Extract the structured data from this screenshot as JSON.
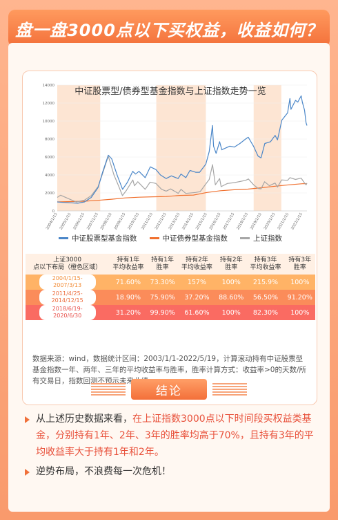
{
  "page": {
    "title": "盘一盘3000点以下买权益，收益如何？",
    "conclusion_label": "结论",
    "source_note": "数据来源：wind，数据统计区间：2003/1/1-2022/5/19，计算滚动持有中证股票型基金指数一年、两年、三年的平均收益率与胜率，胜率计算方式：收益率>0的天数/所有交易日，指数回测不预示未来业绩。",
    "points": [
      {
        "pre": "从上述历史数据来看，",
        "highlight": "在上证指数3000点以下时间段买权益类基金，分别持有1年、2年、3年的胜率均高于70%，且持有3年的平均收益率大于持有1年和2年。",
        "post": ""
      },
      {
        "pre": "逆势布局，不浪费每一次危机！",
        "highlight": "",
        "post": ""
      }
    ]
  },
  "chart_data": {
    "type": "line",
    "title": "中证股票型/债券型基金指数与上证指数走势一览",
    "ylim": [
      0,
      14000
    ],
    "yticks": [
      0,
      2000,
      4000,
      6000,
      8000,
      10000,
      12000,
      14000
    ],
    "xlim": [
      "2004-01-15",
      "2022-05-19"
    ],
    "xticks": [
      "2004/1/15",
      "2005/1/15",
      "2006/1/15",
      "2007/1/15",
      "2008/1/15",
      "2009/1/15",
      "2010/1/15",
      "2011/1/15",
      "2012/1/15",
      "2013/1/15",
      "2014/1/15",
      "2015/1/15",
      "2016/1/15",
      "2017/1/15",
      "2018/1/15",
      "2019/1/15",
      "2020/1/15",
      "2021/1/15",
      "2022/1/15"
    ],
    "shaded_periods": [
      [
        "2004-01-15",
        "2007-03-13"
      ],
      [
        "2011-04-25",
        "2014-12-15"
      ],
      [
        "2018-06-19",
        "2020-06-30"
      ]
    ],
    "shade_color": "#fde5d3",
    "series": [
      {
        "name": "中证股票型基金指数",
        "color": "#4a86c8",
        "points": [
          [
            "2004-01-15",
            1000
          ],
          [
            "2004-06-15",
            950
          ],
          [
            "2005-01-15",
            900
          ],
          [
            "2005-07-15",
            850
          ],
          [
            "2006-01-15",
            1000
          ],
          [
            "2006-07-15",
            1500
          ],
          [
            "2007-01-15",
            2600
          ],
          [
            "2007-05-15",
            4300
          ],
          [
            "2007-10-15",
            6200
          ],
          [
            "2008-01-15",
            5800
          ],
          [
            "2008-06-15",
            3900
          ],
          [
            "2008-11-01",
            2400
          ],
          [
            "2009-03-15",
            3200
          ],
          [
            "2009-08-01",
            4400
          ],
          [
            "2009-10-15",
            4100
          ],
          [
            "2010-01-15",
            4400
          ],
          [
            "2010-07-01",
            3700
          ],
          [
            "2010-11-15",
            4900
          ],
          [
            "2011-04-15",
            4600
          ],
          [
            "2011-08-15",
            4000
          ],
          [
            "2012-01-15",
            3600
          ],
          [
            "2012-06-01",
            3900
          ],
          [
            "2012-12-01",
            3600
          ],
          [
            "2013-02-15",
            4100
          ],
          [
            "2013-06-25",
            3700
          ],
          [
            "2013-10-15",
            4500
          ],
          [
            "2014-03-15",
            4300
          ],
          [
            "2014-07-01",
            4300
          ],
          [
            "2014-12-15",
            5200
          ],
          [
            "2015-03-15",
            6600
          ],
          [
            "2015-06-10",
            9500
          ],
          [
            "2015-07-10",
            7200
          ],
          [
            "2015-09-15",
            6400
          ],
          [
            "2015-12-20",
            7700
          ],
          [
            "2016-02-15",
            6800
          ],
          [
            "2016-09-15",
            7200
          ],
          [
            "2017-01-15",
            7100
          ],
          [
            "2017-06-15",
            7500
          ],
          [
            "2017-11-15",
            8000
          ],
          [
            "2018-01-25",
            8200
          ],
          [
            "2018-06-15",
            7200
          ],
          [
            "2018-10-15",
            6100
          ],
          [
            "2019-01-03",
            5900
          ],
          [
            "2019-04-15",
            7500
          ],
          [
            "2019-09-15",
            7700
          ],
          [
            "2020-01-15",
            8400
          ],
          [
            "2020-03-20",
            7900
          ],
          [
            "2020-07-15",
            10100
          ],
          [
            "2020-12-15",
            10900
          ],
          [
            "2021-02-15",
            12500
          ],
          [
            "2021-03-15",
            11300
          ],
          [
            "2021-07-15",
            12300
          ],
          [
            "2021-09-15",
            12100
          ],
          [
            "2021-12-15",
            12800
          ],
          [
            "2022-01-15",
            12100
          ],
          [
            "2022-03-15",
            11200
          ],
          [
            "2022-04-25",
            9800
          ],
          [
            "2022-05-19",
            9500
          ]
        ]
      },
      {
        "name": "中证债券型基金指数",
        "color": "#f0702e",
        "points": [
          [
            "2004-01-15",
            1000
          ],
          [
            "2006-01-15",
            1080
          ],
          [
            "2007-01-15",
            1180
          ],
          [
            "2008-01-15",
            1300
          ],
          [
            "2009-01-15",
            1450
          ],
          [
            "2010-01-15",
            1520
          ],
          [
            "2011-01-15",
            1570
          ],
          [
            "2012-01-15",
            1600
          ],
          [
            "2013-01-15",
            1720
          ],
          [
            "2014-01-15",
            1760
          ],
          [
            "2015-01-15",
            2050
          ],
          [
            "2016-01-15",
            2250
          ],
          [
            "2017-01-15",
            2350
          ],
          [
            "2018-01-15",
            2420
          ],
          [
            "2019-01-15",
            2580
          ],
          [
            "2020-01-15",
            2750
          ],
          [
            "2021-01-15",
            2900
          ],
          [
            "2022-01-15",
            3020
          ],
          [
            "2022-05-19",
            3030
          ]
        ]
      },
      {
        "name": "上证指数",
        "color": "#a6a6a6",
        "points": [
          [
            "2004-01-15",
            1500
          ],
          [
            "2004-04-15",
            1750
          ],
          [
            "2005-01-15",
            1250
          ],
          [
            "2005-06-06",
            1000
          ],
          [
            "2006-01-15",
            1200
          ],
          [
            "2006-07-15",
            1700
          ],
          [
            "2007-01-15",
            2700
          ],
          [
            "2007-05-28",
            4300
          ],
          [
            "2007-10-16",
            6100
          ],
          [
            "2008-03-15",
            4000
          ],
          [
            "2008-07-15",
            2800
          ],
          [
            "2008-10-28",
            1700
          ],
          [
            "2009-02-15",
            2300
          ],
          [
            "2009-08-04",
            3450
          ],
          [
            "2009-09-15",
            2800
          ],
          [
            "2009-12-15",
            3250
          ],
          [
            "2010-07-01",
            2400
          ],
          [
            "2010-11-10",
            3200
          ],
          [
            "2011-04-15",
            3050
          ],
          [
            "2011-09-15",
            2400
          ],
          [
            "2012-01-15",
            2200
          ],
          [
            "2012-05-15",
            2450
          ],
          [
            "2012-12-03",
            1950
          ],
          [
            "2013-02-15",
            2400
          ],
          [
            "2013-06-25",
            1950
          ],
          [
            "2014-03-15",
            2050
          ],
          [
            "2014-07-15",
            2150
          ],
          [
            "2014-12-15",
            3000
          ],
          [
            "2015-03-15",
            3500
          ],
          [
            "2015-06-12",
            5150
          ],
          [
            "2015-08-26",
            2900
          ],
          [
            "2015-12-20",
            3600
          ],
          [
            "2016-01-28",
            2700
          ],
          [
            "2016-07-15",
            3050
          ],
          [
            "2017-01-15",
            3150
          ],
          [
            "2017-11-15",
            3400
          ],
          [
            "2018-01-29",
            3550
          ],
          [
            "2018-06-19",
            2900
          ],
          [
            "2018-10-18",
            2500
          ],
          [
            "2019-01-03",
            2450
          ],
          [
            "2019-04-08",
            3250
          ],
          [
            "2019-08-15",
            2800
          ],
          [
            "2020-01-15",
            3100
          ],
          [
            "2020-03-19",
            2650
          ],
          [
            "2020-07-09",
            3450
          ],
          [
            "2020-12-15",
            3400
          ],
          [
            "2021-02-18",
            3700
          ],
          [
            "2021-07-15",
            3500
          ],
          [
            "2021-12-15",
            3650
          ],
          [
            "2022-03-15",
            3100
          ],
          [
            "2022-04-26",
            2900
          ],
          [
            "2022-05-19",
            3100
          ]
        ]
      }
    ]
  },
  "table": {
    "headers": [
      "上证3000点以下布局（橙色区域）",
      "持有1年平均收益率",
      "持有1年胜率",
      "持有2年平均收益率",
      "持有2年胜率",
      "持有3年平均收益率",
      "持有3年胜率"
    ],
    "rows": [
      {
        "period": "2004/1/15-2007/3/13",
        "cells": [
          "71.60%",
          "73.30%",
          "157%",
          "100%",
          "215.9%",
          "100%"
        ]
      },
      {
        "period": "2011/4/25-2014/12/15",
        "cells": [
          "18.90%",
          "75.90%",
          "37.20%",
          "88.60%",
          "56.50%",
          "91.20%"
        ]
      },
      {
        "period": "2018/6/19-2020/6/30",
        "cells": [
          "31.20%",
          "99.90%",
          "61.60%",
          "100%",
          "82.30%",
          "100%"
        ]
      }
    ]
  }
}
